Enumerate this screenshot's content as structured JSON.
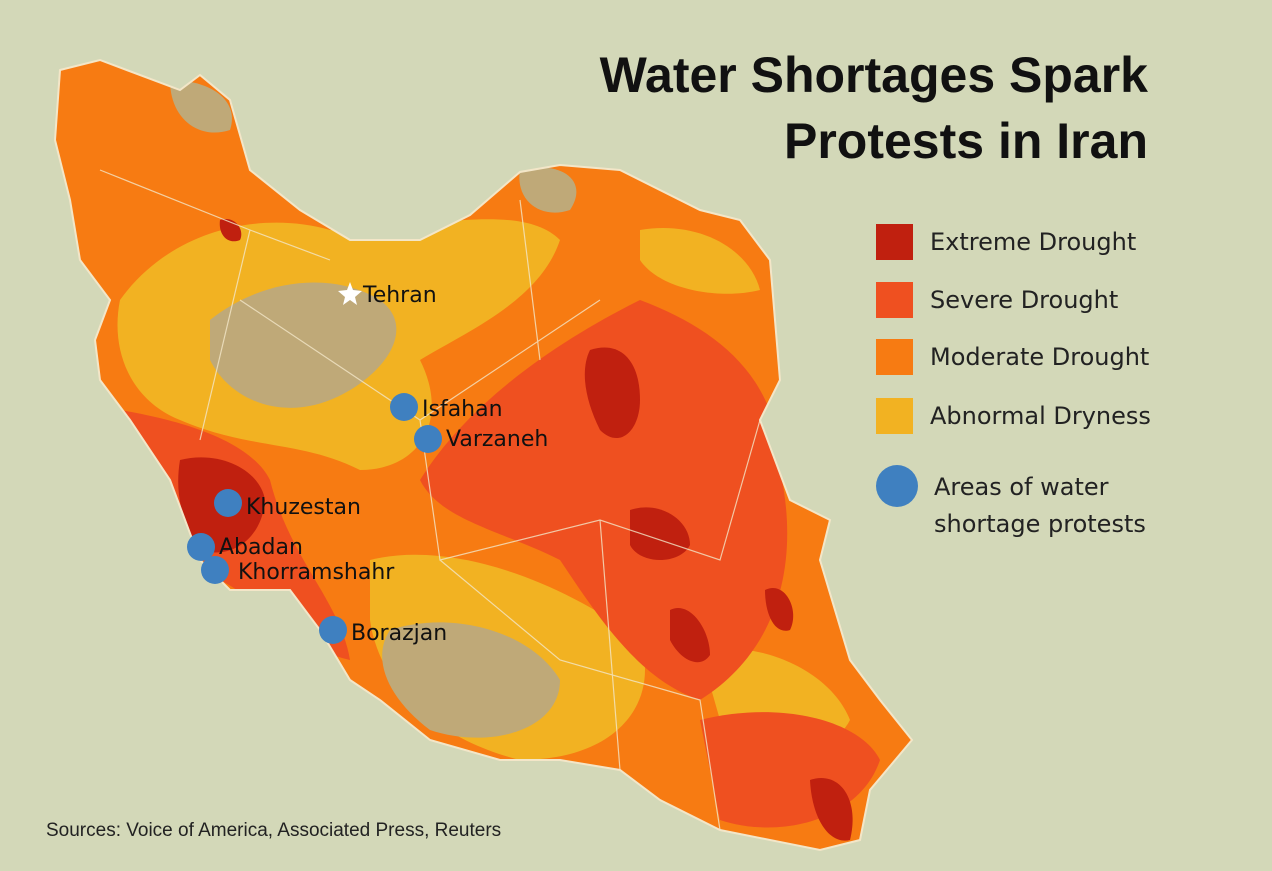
{
  "title_lines": [
    "Water Shortages Spark",
    "Protests in Iran"
  ],
  "legend": [
    {
      "label": "Extreme Drought",
      "color": "#c0200f"
    },
    {
      "label": "Severe Drought",
      "color": "#ef5020"
    },
    {
      "label": "Moderate Drought",
      "color": "#f77b12"
    },
    {
      "label": "Abnormal Dryness",
      "color": "#f2b222"
    },
    {
      "label": "Areas of water shortage protests",
      "color": "#3f80c0"
    }
  ],
  "capital": "Tehran",
  "protest_sites": [
    "Isfahan",
    "Varzaneh",
    "Khuzestan",
    "Abadan",
    "Khorramshahr",
    "Borazjan"
  ],
  "source": "Sources: Voice of America, Associated Press, Reuters"
}
